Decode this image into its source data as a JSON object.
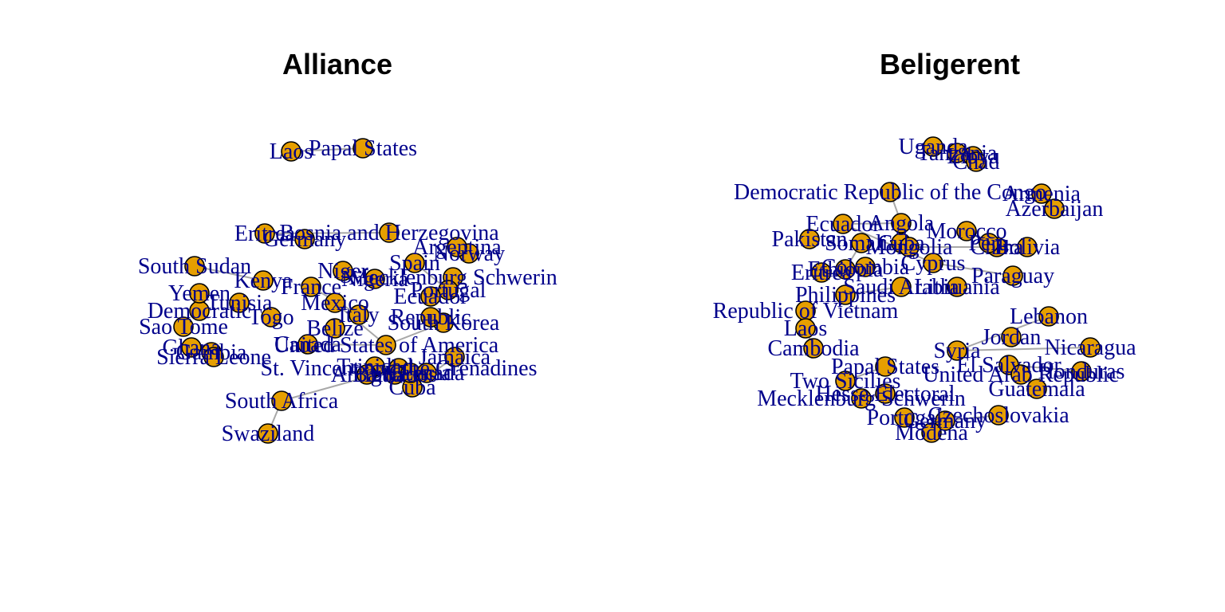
{
  "colors": {
    "node_fill": "#e69f00",
    "node_stroke": "#000000",
    "label": "#00008b",
    "edge": "#a8a8a8"
  },
  "panels": [
    {
      "id": "alliance",
      "title": "Alliance",
      "nodes": [
        {
          "id": "laos",
          "label": "Laos"
        },
        {
          "id": "papal",
          "label": "Papal States"
        },
        {
          "id": "bosnia",
          "label": "Bosnia and Herzegovina"
        },
        {
          "id": "eritrea_a",
          "label": "Eritrea"
        },
        {
          "id": "s_sudan",
          "label": "South Sudan"
        },
        {
          "id": "dem_a",
          "label": "Democratic"
        },
        {
          "id": "usa",
          "label": "United States of America"
        },
        {
          "id": "s_korea",
          "label": "South Korea"
        },
        {
          "id": "svg_gren",
          "label": "St. Vincent and the Grenadines"
        },
        {
          "id": "s_africa",
          "label": "South Africa"
        },
        {
          "id": "swazi",
          "label": "Swaziland"
        },
        {
          "id": "cuba",
          "label": "Cuba"
        },
        {
          "id": "germany_a",
          "label": "Germany"
        },
        {
          "id": "norway",
          "label": "Norway"
        },
        {
          "id": "argentina",
          "label": "Argentina"
        },
        {
          "id": "mschwerin",
          "label": "Mecklenburg Schwerin"
        },
        {
          "id": "portugal",
          "label": "Portugal"
        },
        {
          "id": "ecuador_a",
          "label": "Ecuador"
        },
        {
          "id": "yemen",
          "label": "Yemen"
        },
        {
          "id": "kenya",
          "label": "Kenya"
        },
        {
          "id": "sao_tome",
          "label": "Sao Tome"
        },
        {
          "id": "gambia",
          "label": "Gambia"
        },
        {
          "id": "sierra",
          "label": "Sierra Leone"
        },
        {
          "id": "ghana",
          "label": "Ghana"
        },
        {
          "id": "canada",
          "label": "Canada"
        },
        {
          "id": "belize",
          "label": "Belize"
        },
        {
          "id": "trinidad",
          "label": "Trinidad"
        },
        {
          "id": "antigua",
          "label": "Antigua"
        },
        {
          "id": "barbados",
          "label": "Barbados"
        },
        {
          "id": "st_lucia",
          "label": "St. Lucia"
        },
        {
          "id": "grenada",
          "label": "Grenada"
        },
        {
          "id": "jamaica",
          "label": "Jamaica"
        },
        {
          "id": "republic",
          "label": "Republic"
        },
        {
          "id": "tunisia",
          "label": "Tunisia"
        },
        {
          "id": "togo",
          "label": "Togo"
        },
        {
          "id": "mexico",
          "label": "Mexico"
        },
        {
          "id": "nigeria",
          "label": "Nigeria"
        },
        {
          "id": "niger",
          "label": "Niger"
        },
        {
          "id": "france",
          "label": "France"
        },
        {
          "id": "spain",
          "label": "Spain"
        },
        {
          "id": "italy",
          "label": "Italy"
        }
      ],
      "edges": [
        [
          "s_africa",
          "swazi"
        ],
        [
          "s_africa",
          "svg_gren"
        ],
        [
          "laos",
          "papal"
        ],
        [
          "s_sudan",
          "kenya"
        ],
        [
          "usa",
          "canada"
        ],
        [
          "usa",
          "mexico"
        ],
        [
          "eritrea_a",
          "bosnia"
        ],
        [
          "s_korea",
          "usa"
        ],
        [
          "portugal",
          "spain"
        ],
        [
          "france",
          "italy"
        ],
        [
          "cuba",
          "jamaica"
        ]
      ]
    },
    {
      "id": "beligerent",
      "title": "Beligerent",
      "nodes": [
        {
          "id": "uganda",
          "label": "Uganda"
        },
        {
          "id": "tanzania",
          "label": "Tanzania"
        },
        {
          "id": "libya",
          "label": "Libya"
        },
        {
          "id": "chad",
          "label": "Chad"
        },
        {
          "id": "drc",
          "label": "Democratic Republic of the Congo"
        },
        {
          "id": "armenia",
          "label": "Armenia"
        },
        {
          "id": "azerbaijan",
          "label": "Azerbaijan"
        },
        {
          "id": "ecuador",
          "label": "Ecuador"
        },
        {
          "id": "angola",
          "label": "Angola"
        },
        {
          "id": "cuba_b",
          "label": "Cuba"
        },
        {
          "id": "morocco",
          "label": "Morocco"
        },
        {
          "id": "pakistan",
          "label": "Pakistan"
        },
        {
          "id": "somalia",
          "label": "Somalia"
        },
        {
          "id": "mongolia",
          "label": "Mongolia"
        },
        {
          "id": "china",
          "label": "China"
        },
        {
          "id": "peru",
          "label": "Peru"
        },
        {
          "id": "bolivia",
          "label": "Bolivia"
        },
        {
          "id": "cyprus",
          "label": "Cyprus"
        },
        {
          "id": "eritrea_b",
          "label": "Eritrea"
        },
        {
          "id": "ethiopia",
          "label": "Ethiopia"
        },
        {
          "id": "colombia",
          "label": "Colombia"
        },
        {
          "id": "paraguay",
          "label": "Paraguay"
        },
        {
          "id": "philippines",
          "label": "Philippines"
        },
        {
          "id": "saudi",
          "label": "Saudi Arabia"
        },
        {
          "id": "lithuania",
          "label": "Lithuania"
        },
        {
          "id": "rep_b",
          "label": "Republic of Vietnam"
        },
        {
          "id": "lebanon",
          "label": "Lebanon"
        },
        {
          "id": "laos_b",
          "label": "Laos"
        },
        {
          "id": "jordan",
          "label": "Jordan"
        },
        {
          "id": "cambodia",
          "label": "Cambodia"
        },
        {
          "id": "syria",
          "label": "Syria"
        },
        {
          "id": "nicaragua",
          "label": "Nicaragua"
        },
        {
          "id": "el_salvador",
          "label": "El Salvador"
        },
        {
          "id": "honduras",
          "label": "Honduras"
        },
        {
          "id": "papal_b",
          "label": "Papal States"
        },
        {
          "id": "two_sicilies",
          "label": "Two Sicilies"
        },
        {
          "id": "uar",
          "label": "United Arab Republic"
        },
        {
          "id": "guatemala",
          "label": "Guatemala"
        },
        {
          "id": "hesse",
          "label": "Hesse Electoral"
        },
        {
          "id": "mecklenburg",
          "label": "Mecklenburg Schwerin"
        },
        {
          "id": "czech",
          "label": "Czechoslovakia"
        },
        {
          "id": "portugal_b",
          "label": "Portugal"
        },
        {
          "id": "germany_b",
          "label": "Germany"
        },
        {
          "id": "modena",
          "label": "Modena"
        }
      ],
      "edges": [
        [
          "drc",
          "angola"
        ],
        [
          "angola",
          "ecuador"
        ],
        [
          "morocco",
          "peru"
        ],
        [
          "peru",
          "bolivia"
        ],
        [
          "armenia",
          "azerbaijan"
        ],
        [
          "ecuador",
          "cyprus"
        ],
        [
          "cyprus",
          "paraguay"
        ],
        [
          "lebanon",
          "syria"
        ],
        [
          "syria",
          "nicaragua"
        ],
        [
          "el_salvador",
          "honduras"
        ],
        [
          "uar",
          "guatemala"
        ],
        [
          "hesse",
          "mecklenburg"
        ],
        [
          "germany_b",
          "modena"
        ],
        [
          "czech",
          "germany_b"
        ],
        [
          "papal_b",
          "two_sicilies"
        ],
        [
          "china",
          "mongolia"
        ],
        [
          "philippines",
          "saudi"
        ],
        [
          "laos_b",
          "cambodia"
        ],
        [
          "rep_b",
          "laos_b"
        ],
        [
          "somalia",
          "ethiopia"
        ]
      ]
    }
  ]
}
